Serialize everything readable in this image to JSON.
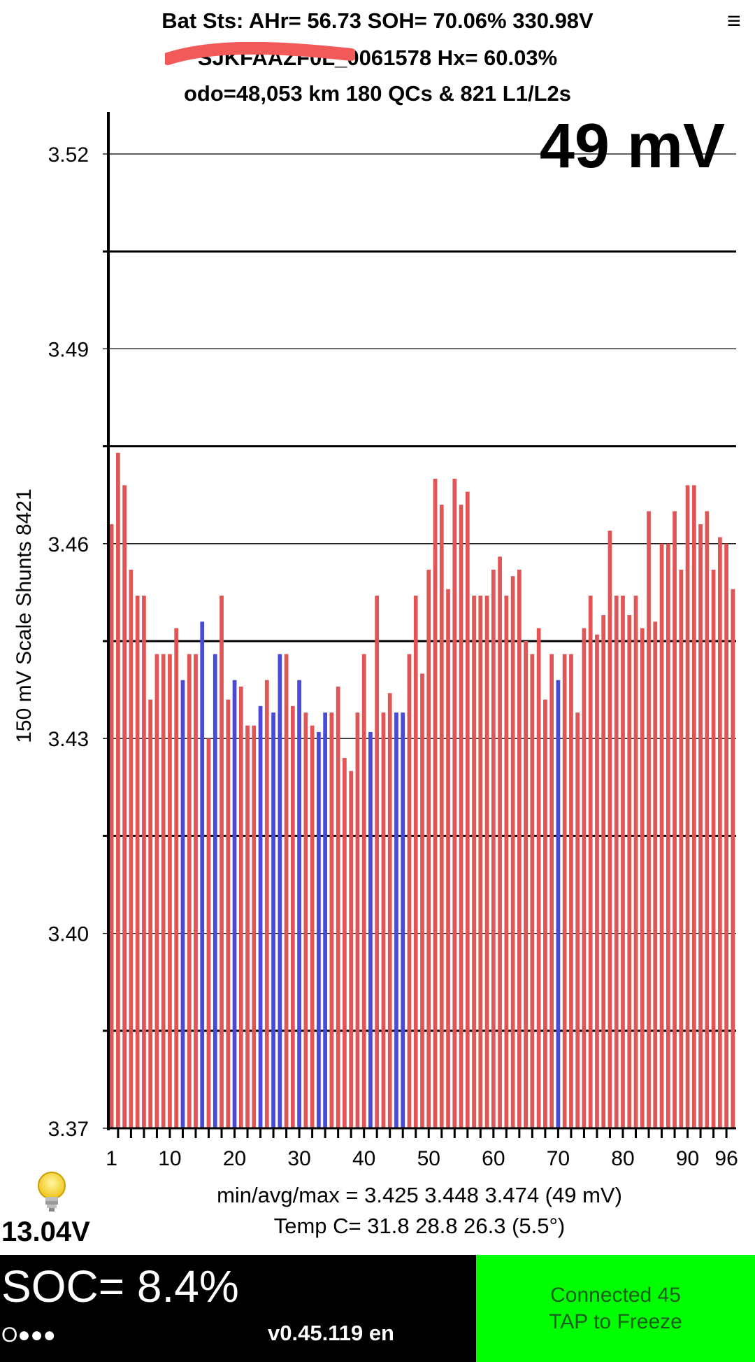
{
  "header": {
    "line1": "Bat Sts: AHr= 56.73 SOH= 70.06% 330.98V",
    "line2": "SJKFAAZF0L_0061578   Hx= 60.03%",
    "line3": "odo=48,053 km 180 QCs & 821 L1/L2s"
  },
  "menu_icon": "≡",
  "spread_label": "49 mV",
  "chart_data": {
    "type": "bar",
    "ylabel": "150 mV Scale   Shunts 8421",
    "ylim": [
      3.37,
      3.525
    ],
    "yticks": [
      "3.52",
      "3.49",
      "3.46",
      "3.43",
      "3.40",
      "3.37"
    ],
    "xtick_labels": [
      "1",
      "10",
      "20",
      "30",
      "40",
      "50",
      "60",
      "70",
      "80",
      "90",
      "96"
    ],
    "xticks_at": [
      1,
      10,
      20,
      30,
      40,
      50,
      60,
      70,
      80,
      90,
      96
    ],
    "grid": true,
    "colors": {
      "normal": "#e05555",
      "shunted": "#4a4ad8"
    },
    "shunted_cells": [
      12,
      15,
      17,
      20,
      24,
      26,
      27,
      30,
      33,
      34,
      41,
      45,
      46,
      70
    ],
    "values": [
      3.463,
      3.474,
      3.469,
      3.456,
      3.452,
      3.452,
      3.436,
      3.443,
      3.443,
      3.443,
      3.447,
      3.439,
      3.443,
      3.443,
      3.448,
      3.43,
      3.443,
      3.452,
      3.436,
      3.439,
      3.438,
      3.432,
      3.432,
      3.435,
      3.439,
      3.434,
      3.443,
      3.443,
      3.435,
      3.439,
      3.434,
      3.432,
      3.431,
      3.434,
      3.434,
      3.438,
      3.427,
      3.425,
      3.434,
      3.443,
      3.431,
      3.452,
      3.434,
      3.437,
      3.434,
      3.434,
      3.443,
      3.452,
      3.44,
      3.456,
      3.47,
      3.466,
      3.453,
      3.47,
      3.466,
      3.468,
      3.452,
      3.452,
      3.452,
      3.456,
      3.458,
      3.452,
      3.455,
      3.456,
      3.445,
      3.443,
      3.447,
      3.436,
      3.443,
      3.439,
      3.443,
      3.443,
      3.434,
      3.447,
      3.452,
      3.446,
      3.449,
      3.462,
      3.452,
      3.452,
      3.449,
      3.452,
      3.447,
      3.465,
      3.448,
      3.46,
      3.46,
      3.465,
      3.456,
      3.469,
      3.469,
      3.463,
      3.465,
      3.456,
      3.461,
      3.46,
      3.453
    ]
  },
  "stats": {
    "line1": "min/avg/max = 3.425 3.448 3.474  (49 mV)",
    "line2": "Temp C= 31.8  28.8  26.3  (5.5°)"
  },
  "aux_voltage": "13.04V",
  "footer": {
    "soc": "SOC= 8.4%",
    "dots": "O●●●",
    "version": "v0.45.119 en",
    "status_line1": "Connected 45",
    "status_line2": "TAP to Freeze",
    "status_color": "#00ff00"
  }
}
